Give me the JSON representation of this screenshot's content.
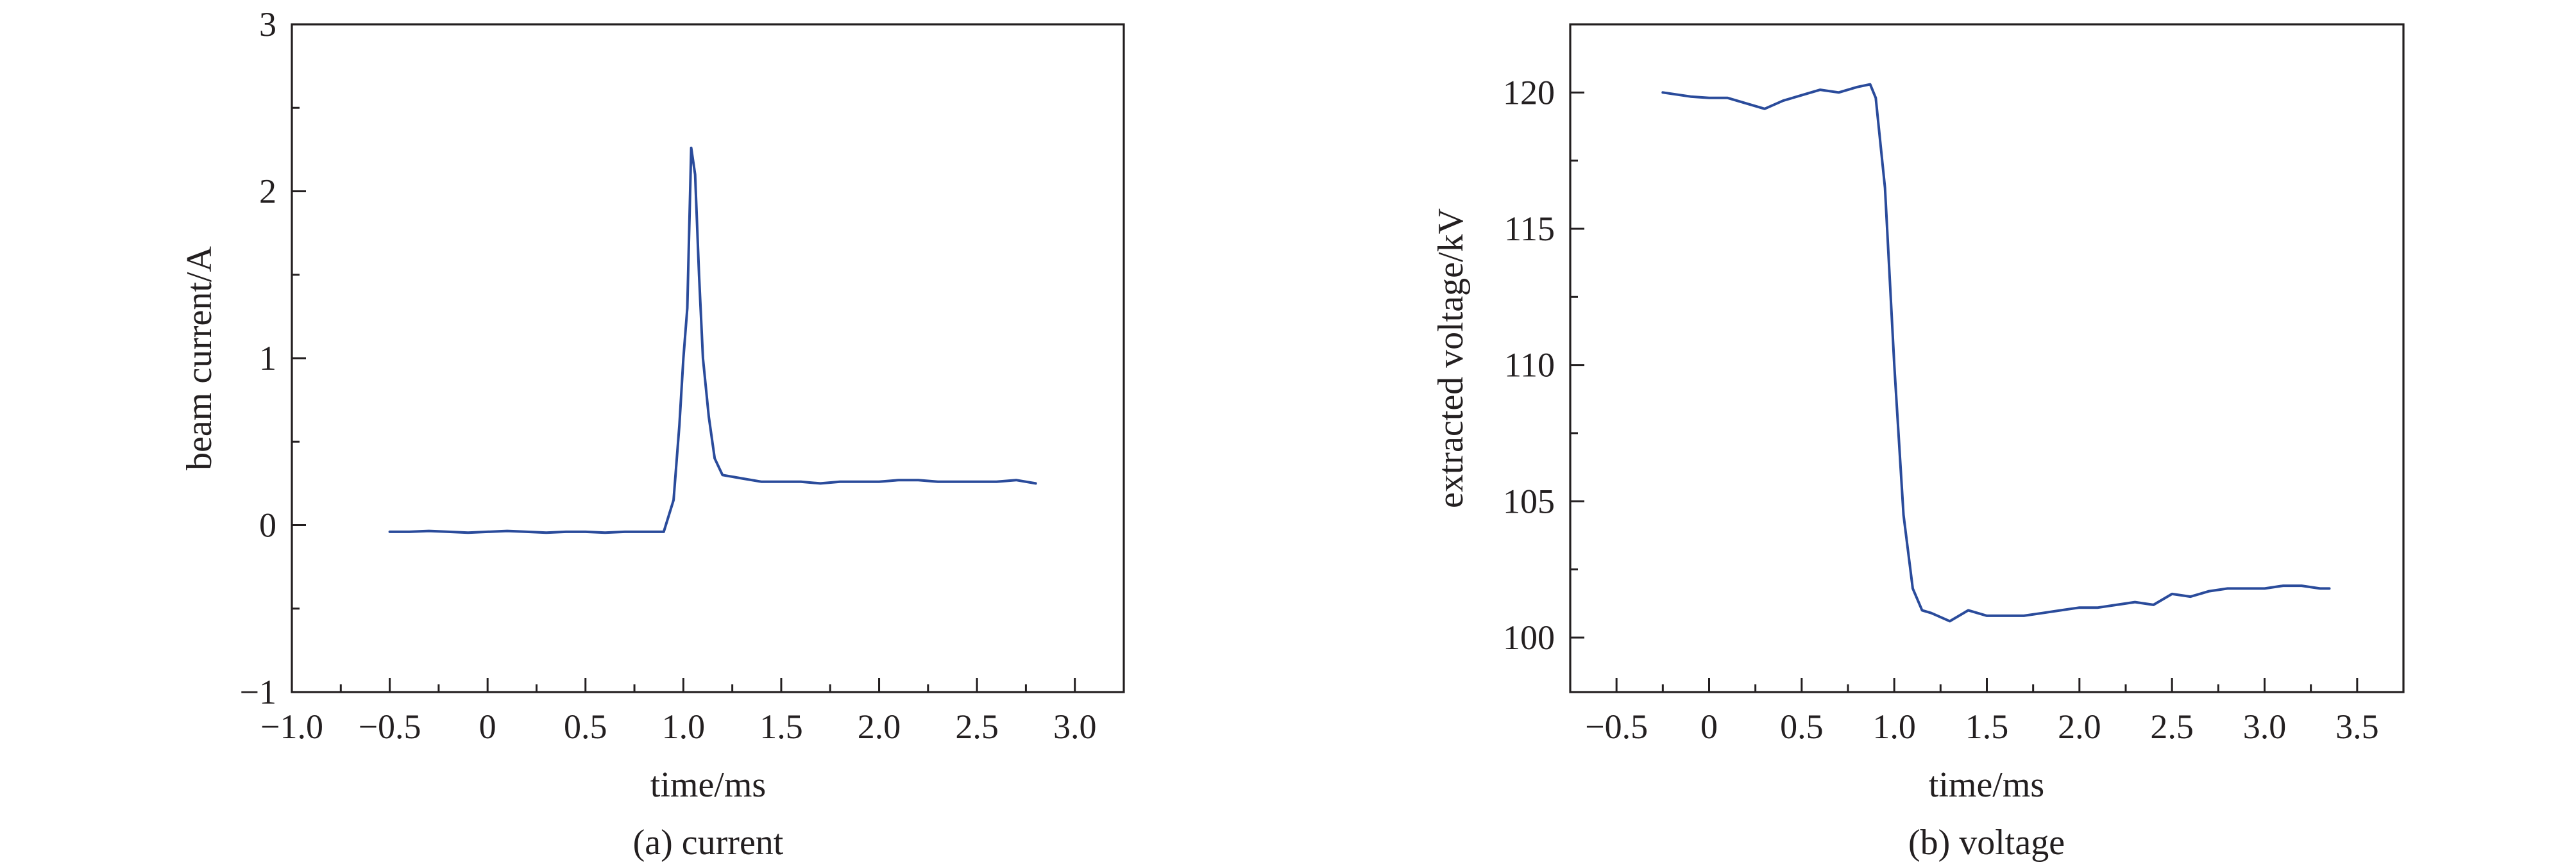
{
  "style": {
    "line_color": "#2a4b9b",
    "axis_color": "#231f20",
    "background": "#ffffff"
  },
  "chart_data": [
    {
      "type": "line",
      "caption": "(a) current",
      "xlabel": "time/ms",
      "ylabel": "beam current/A",
      "xlim": [
        -1.0,
        3.25
      ],
      "ylim": [
        -1,
        3
      ],
      "xticks": [
        -1.0,
        -0.5,
        0,
        0.5,
        1.0,
        1.5,
        2.0,
        2.5,
        3.0
      ],
      "xtick_labels": [
        "−1.0",
        "−0.5",
        "0",
        "0.5",
        "1.0",
        "1.5",
        "2.0",
        "2.5",
        "3.0"
      ],
      "yticks": [
        -1,
        0,
        1,
        2,
        3
      ],
      "ytick_labels": [
        "−1",
        "0",
        "1",
        "2",
        "3"
      ],
      "grid": false,
      "series": [
        {
          "x": [
            -0.5,
            -0.4,
            -0.3,
            -0.2,
            -0.1,
            0.0,
            0.1,
            0.2,
            0.3,
            0.4,
            0.5,
            0.6,
            0.7,
            0.8,
            0.9,
            0.95,
            0.98,
            1.0,
            1.02,
            1.04,
            1.06,
            1.08,
            1.1,
            1.13,
            1.16,
            1.2,
            1.3,
            1.4,
            1.5,
            1.6,
            1.7,
            1.8,
            1.9,
            2.0,
            2.1,
            2.2,
            2.3,
            2.4,
            2.5,
            2.6,
            2.7,
            2.8
          ],
          "y": [
            -0.04,
            -0.04,
            -0.035,
            -0.04,
            -0.045,
            -0.04,
            -0.035,
            -0.04,
            -0.045,
            -0.04,
            -0.04,
            -0.045,
            -0.04,
            -0.04,
            -0.04,
            0.15,
            0.6,
            1.0,
            1.3,
            2.26,
            2.1,
            1.5,
            1.0,
            0.65,
            0.4,
            0.3,
            0.28,
            0.26,
            0.26,
            0.26,
            0.25,
            0.26,
            0.26,
            0.26,
            0.27,
            0.27,
            0.26,
            0.26,
            0.26,
            0.26,
            0.27,
            0.25
          ]
        }
      ]
    },
    {
      "type": "line",
      "caption": "(b) voltage",
      "xlabel": "time/ms",
      "ylabel": "extracted voltage/kV",
      "xlim": [
        -0.75,
        3.75
      ],
      "ylim": [
        98,
        122.5
      ],
      "xticks": [
        -0.5,
        0,
        0.5,
        1.0,
        1.5,
        2.0,
        2.5,
        3.0,
        3.5
      ],
      "xtick_labels": [
        "−0.5",
        "0",
        "0.5",
        "1.0",
        "1.5",
        "2.0",
        "2.5",
        "3.0",
        "3.5"
      ],
      "yticks": [
        100,
        105,
        110,
        115,
        120
      ],
      "ytick_labels": [
        "100",
        "105",
        "110",
        "115",
        "120"
      ],
      "grid": false,
      "series": [
        {
          "x": [
            -0.25,
            -0.1,
            0.0,
            0.1,
            0.2,
            0.3,
            0.4,
            0.5,
            0.6,
            0.7,
            0.8,
            0.87,
            0.9,
            0.95,
            1.0,
            1.05,
            1.1,
            1.15,
            1.2,
            1.3,
            1.4,
            1.5,
            1.6,
            1.7,
            1.8,
            1.9,
            2.0,
            2.1,
            2.2,
            2.3,
            2.4,
            2.5,
            2.6,
            2.7,
            2.8,
            2.9,
            3.0,
            3.1,
            3.2,
            3.3,
            3.35
          ],
          "y": [
            120.0,
            119.85,
            119.8,
            119.8,
            119.6,
            119.4,
            119.7,
            119.9,
            120.1,
            120.0,
            120.2,
            120.3,
            119.8,
            116.5,
            110.0,
            104.5,
            101.8,
            101.0,
            100.9,
            100.6,
            101.0,
            100.8,
            100.8,
            100.8,
            100.9,
            101.0,
            101.1,
            101.1,
            101.2,
            101.3,
            101.2,
            101.6,
            101.5,
            101.7,
            101.8,
            101.8,
            101.8,
            101.9,
            101.9,
            101.8,
            101.8
          ]
        }
      ]
    }
  ]
}
